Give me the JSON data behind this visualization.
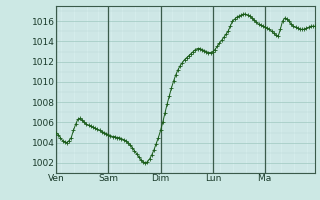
{
  "bg_color": "#cce8e4",
  "plot_bg_color": "#d4eceb",
  "line_color": "#1a5c1a",
  "marker_color": "#1a5c1a",
  "grid_color_minor": "#b8d8d4",
  "grid_color_major": "#a0c8c0",
  "yticks": [
    1002,
    1004,
    1006,
    1008,
    1010,
    1012,
    1014,
    1016
  ],
  "ylim": [
    1001.0,
    1017.5
  ],
  "vline_color": "#3a5a4a",
  "y_values": [
    1005.0,
    1004.8,
    1004.5,
    1004.2,
    1004.1,
    1004.0,
    1004.2,
    1004.5,
    1005.2,
    1005.8,
    1006.3,
    1006.4,
    1006.2,
    1006.0,
    1005.8,
    1005.7,
    1005.6,
    1005.5,
    1005.4,
    1005.3,
    1005.2,
    1005.1,
    1005.0,
    1004.9,
    1004.8,
    1004.7,
    1004.6,
    1004.6,
    1004.5,
    1004.5,
    1004.4,
    1004.3,
    1004.2,
    1004.0,
    1003.8,
    1003.5,
    1003.2,
    1002.9,
    1002.6,
    1002.3,
    1002.1,
    1002.0,
    1002.1,
    1002.4,
    1002.8,
    1003.3,
    1003.9,
    1004.5,
    1005.2,
    1006.0,
    1006.9,
    1007.8,
    1008.6,
    1009.4,
    1010.1,
    1010.7,
    1011.2,
    1011.6,
    1011.9,
    1012.2,
    1012.4,
    1012.6,
    1012.8,
    1013.0,
    1013.2,
    1013.3,
    1013.3,
    1013.2,
    1013.1,
    1013.0,
    1012.9,
    1012.9,
    1013.0,
    1013.2,
    1013.5,
    1013.8,
    1014.1,
    1014.4,
    1014.7,
    1015.0,
    1015.5,
    1016.0,
    1016.2,
    1016.4,
    1016.5,
    1016.6,
    1016.7,
    1016.7,
    1016.6,
    1016.5,
    1016.3,
    1016.1,
    1015.9,
    1015.7,
    1015.6,
    1015.5,
    1015.4,
    1015.3,
    1015.2,
    1015.0,
    1014.8,
    1014.6,
    1014.5,
    1015.2,
    1016.0,
    1016.3,
    1016.2,
    1016.0,
    1015.7,
    1015.5,
    1015.4,
    1015.3,
    1015.2,
    1015.2,
    1015.2,
    1015.3,
    1015.4,
    1015.5,
    1015.5,
    1015.5
  ],
  "tick_fontsize": 6.5,
  "xlabel_labels": [
    "Ven",
    "Sam",
    "Dim",
    "Lun",
    "M⁠a"
  ]
}
